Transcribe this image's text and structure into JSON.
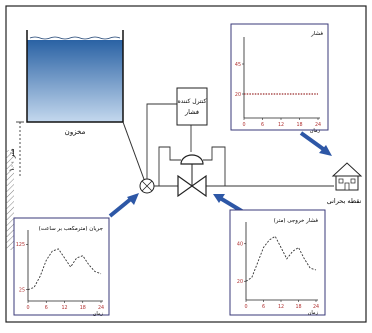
{
  "tank": {
    "label": "مخزون"
  },
  "height": {
    "label": "۱۰۰ متر"
  },
  "controller": {
    "line1": "کنترل کننده",
    "line2": "فشار"
  },
  "critical_point": {
    "label": "نقطه بحرانی"
  },
  "colors": {
    "water_top": "#2a62a4",
    "water_bottom": "#c4d8ee",
    "panel_border": "#3a3a7a",
    "arrow": "#2d57a6",
    "plot_line": "#9b2d2d",
    "pipe": "#333333"
  },
  "chart_data": [
    {
      "type": "line",
      "title": "فشار",
      "xlabel": "زمان",
      "xticks": [
        "0",
        "6",
        "12",
        "18",
        "24"
      ],
      "yticks": [
        "20",
        "45"
      ],
      "xlim": [
        0,
        24
      ],
      "ylim": [
        0,
        65
      ],
      "series": [
        {
          "x": [
            0,
            2,
            4,
            6,
            8,
            10,
            12,
            14,
            16,
            18,
            20,
            22,
            24
          ],
          "y": [
            20,
            20,
            20,
            20,
            20,
            20,
            20,
            20,
            20,
            20,
            20,
            20,
            20
          ]
        }
      ]
    },
    {
      "type": "line",
      "title": "جریان (مترمکعب بر ساعت)",
      "xlabel": "زمان",
      "xticks": [
        "0",
        "6",
        "12",
        "18",
        "24"
      ],
      "yticks": [
        "25",
        "125"
      ],
      "xlim": [
        0,
        24
      ],
      "ylim": [
        0,
        150
      ],
      "series": [
        {
          "x": [
            0,
            2,
            4,
            6,
            8,
            10,
            12,
            14,
            16,
            18,
            20,
            22,
            24
          ],
          "y": [
            25,
            30,
            55,
            90,
            110,
            115,
            95,
            75,
            95,
            100,
            80,
            65,
            60
          ]
        }
      ]
    },
    {
      "type": "line",
      "title": "فشار خروجی (متر)",
      "xlabel": "زمان",
      "xticks": [
        "0",
        "6",
        "12",
        "18",
        "24"
      ],
      "yticks": [
        "20",
        "40"
      ],
      "xlim": [
        0,
        24
      ],
      "ylim": [
        10,
        50
      ],
      "series": [
        {
          "x": [
            0,
            2,
            4,
            6,
            8,
            10,
            12,
            14,
            16,
            18,
            20,
            22,
            24
          ],
          "y": [
            20,
            22,
            30,
            38,
            42,
            44,
            38,
            32,
            36,
            38,
            32,
            27,
            26
          ]
        }
      ]
    }
  ]
}
